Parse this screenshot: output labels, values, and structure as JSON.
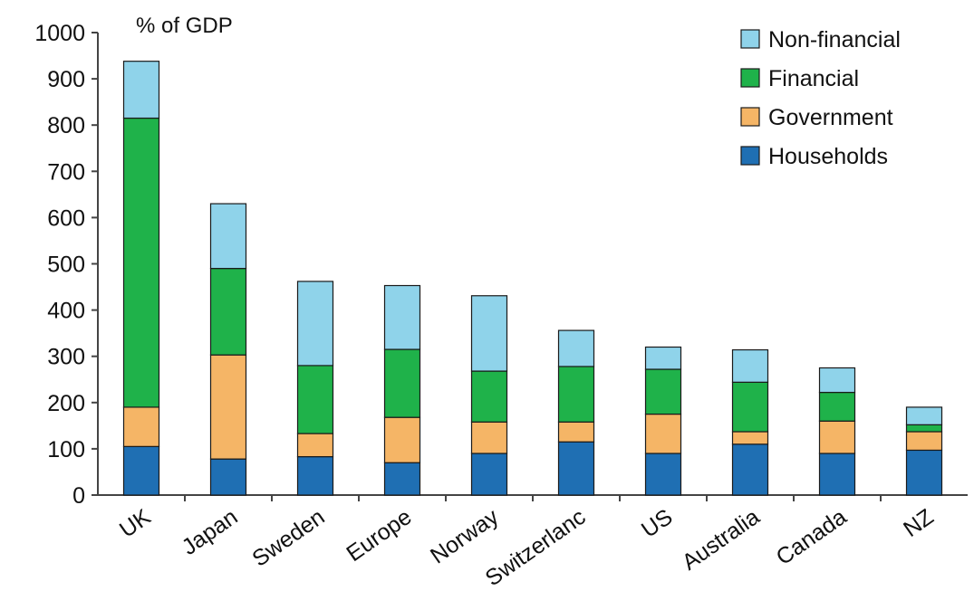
{
  "chart_data": {
    "type": "bar",
    "stacked": true,
    "unit_label": "% of GDP",
    "categories": [
      "UK",
      "Japan",
      "Sweden",
      "Europe",
      "Norway",
      "Switzerlanc",
      "US",
      "Australia",
      "Canada",
      "NZ"
    ],
    "series": [
      {
        "name": "Households",
        "color": "#1f6fb3",
        "values": [
          105,
          78,
          83,
          70,
          90,
          115,
          90,
          110,
          90,
          97
        ]
      },
      {
        "name": "Government",
        "color": "#f5b566",
        "values": [
          85,
          225,
          50,
          98,
          68,
          43,
          85,
          27,
          70,
          40
        ]
      },
      {
        "name": "Financial",
        "color": "#1fb24a",
        "values": [
          625,
          187,
          147,
          147,
          110,
          120,
          97,
          107,
          62,
          15
        ]
      },
      {
        "name": "Non-financial",
        "color": "#8fd3ea",
        "values": [
          123,
          140,
          182,
          138,
          163,
          78,
          48,
          70,
          53,
          38
        ]
      }
    ],
    "ylim": [
      0,
      1000
    ],
    "yticks": [
      "0",
      "100",
      "200",
      "300",
      "400",
      "500",
      "600",
      "700",
      "800",
      "900",
      "1000"
    ],
    "legend_order": [
      "Non-financial",
      "Financial",
      "Government",
      "Households"
    ],
    "legend_position": "top-right",
    "grid": false
  }
}
